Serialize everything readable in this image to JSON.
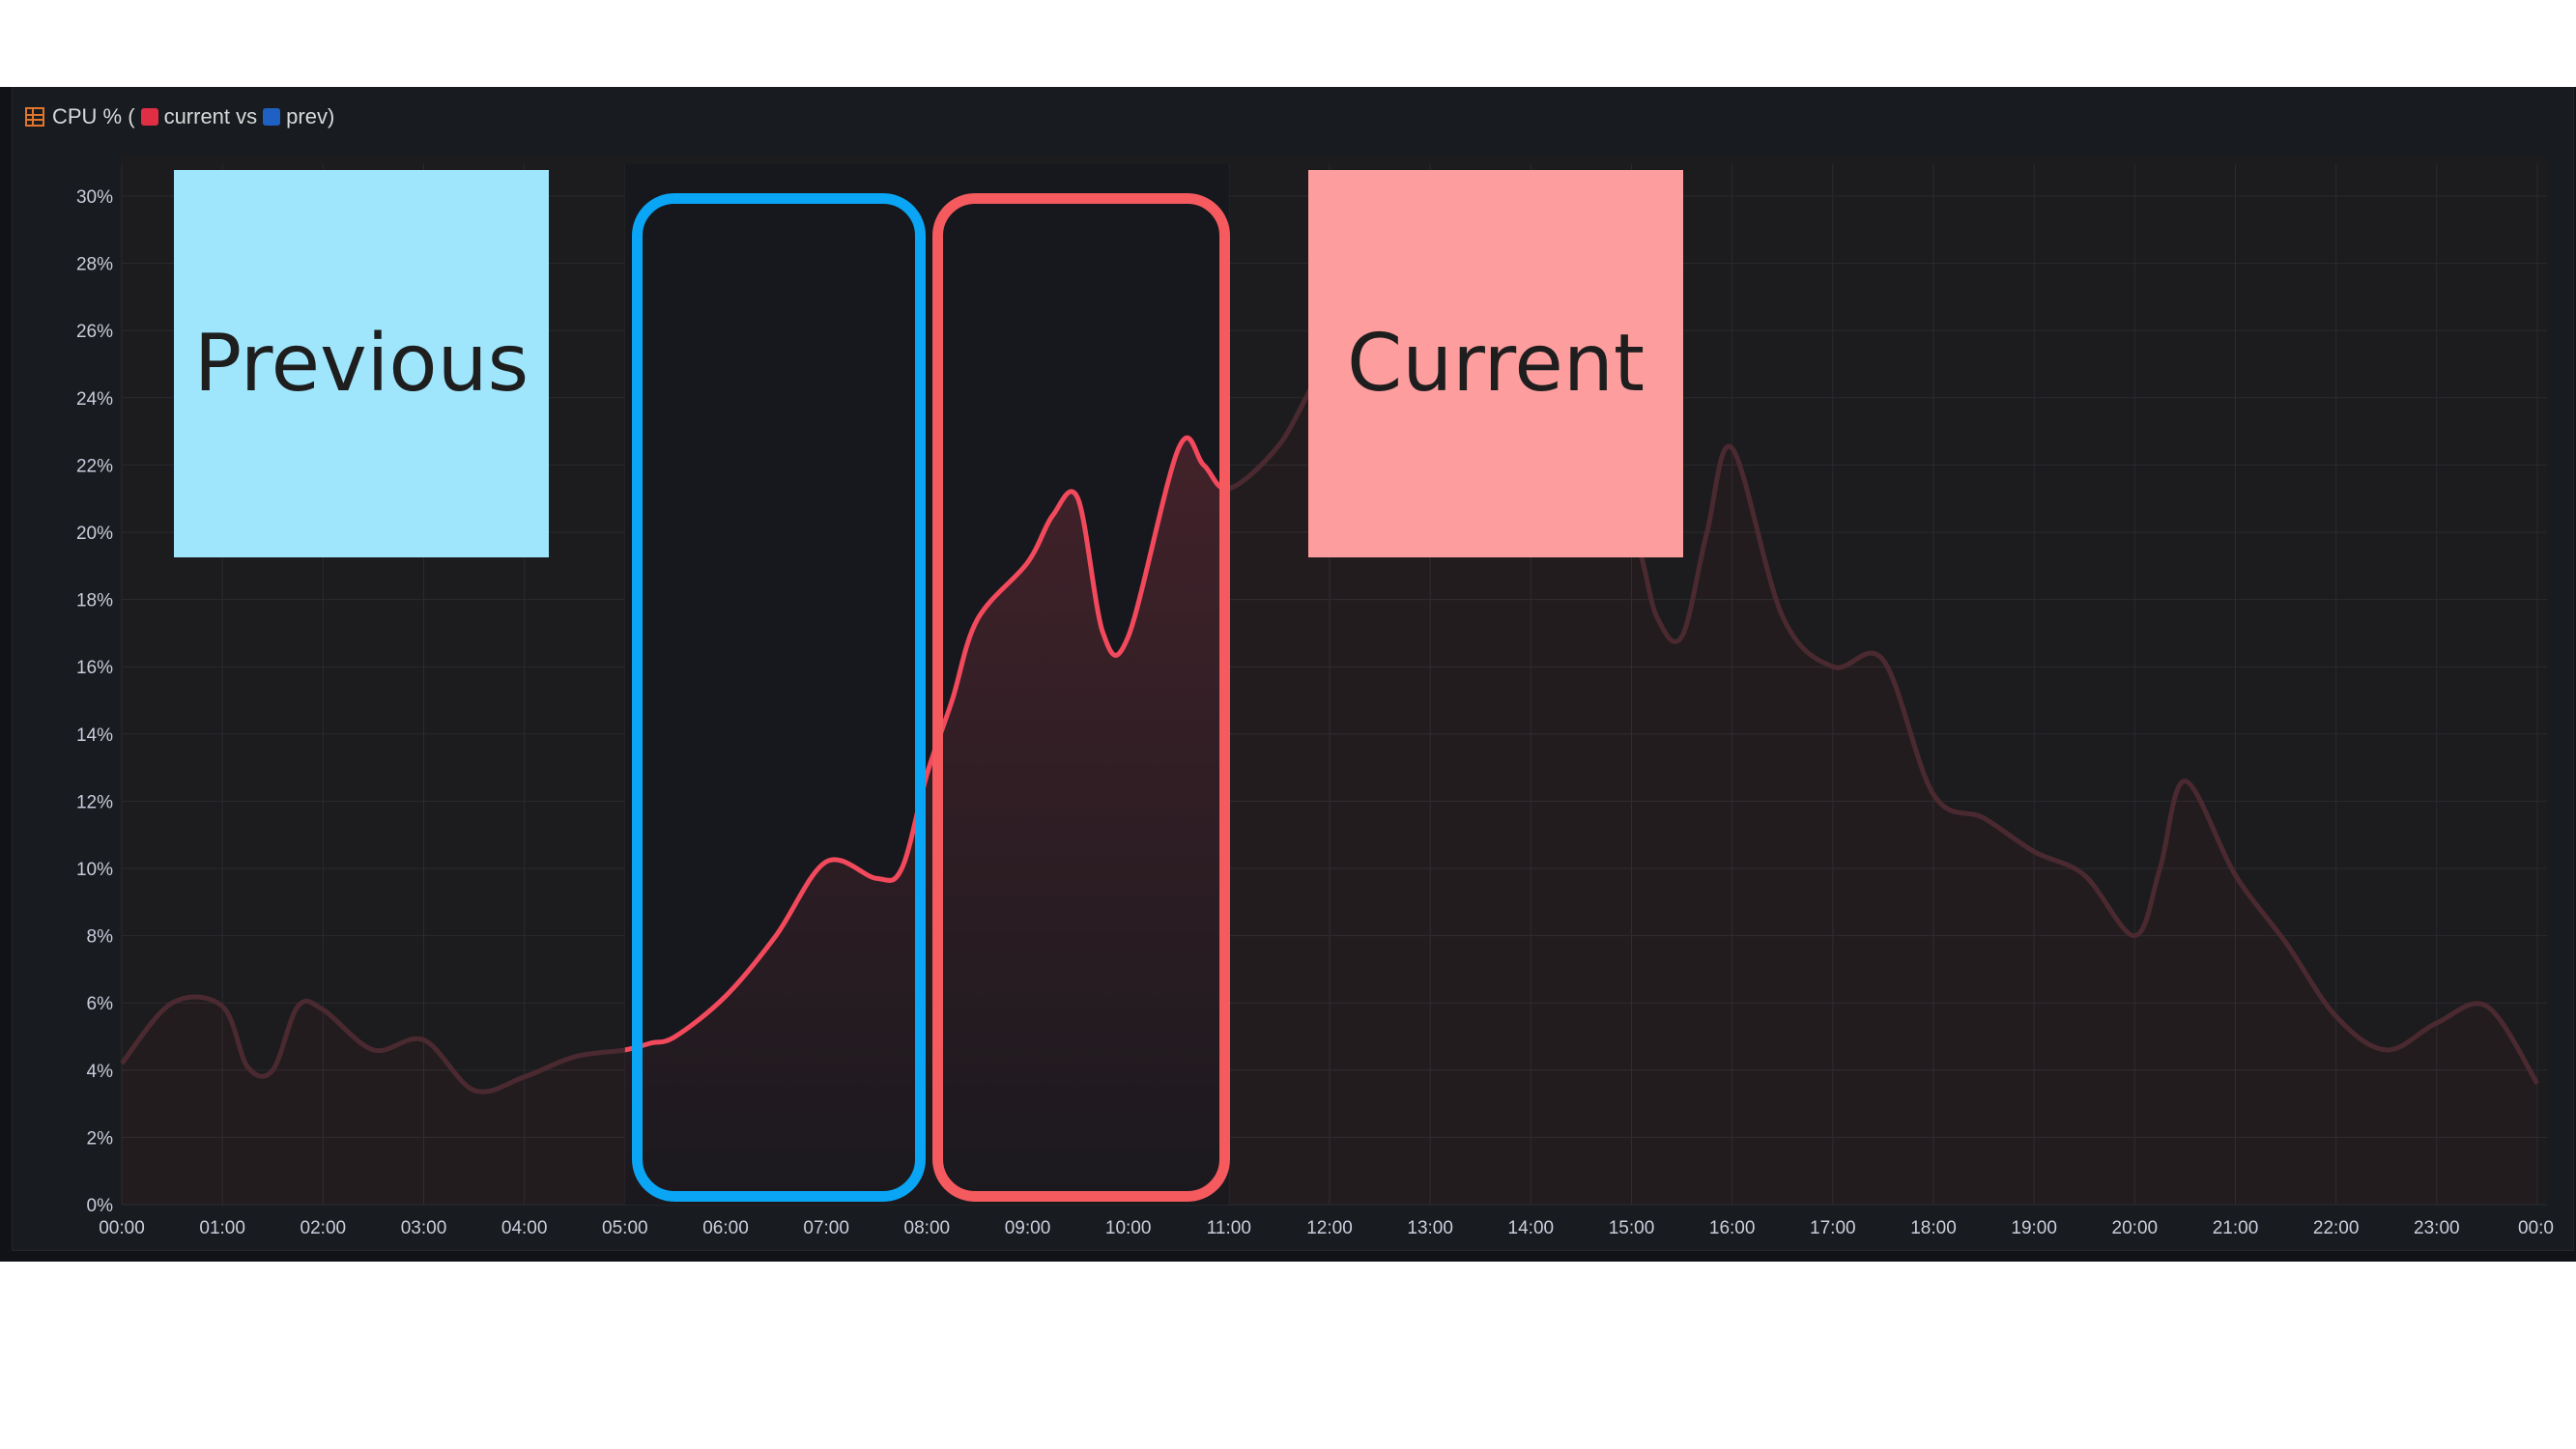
{
  "panel": {
    "title_prefix": "CPU % (",
    "current_label": "current vs",
    "prev_label": "prev)",
    "current_color": "#e02f44",
    "prev_color": "#1f60c4",
    "title_icon": "table-icon"
  },
  "annotations": {
    "previous_note": "Previous",
    "current_note": "Current",
    "previous_note_color": "#9fe5fc",
    "current_note_color": "#fe9d9d",
    "previous_box_color": "#0aa5f5",
    "current_box_color": "#f55a5f"
  },
  "chart_data": {
    "type": "area",
    "title": "CPU % (current vs prev)",
    "xlabel": "",
    "ylabel": "",
    "x_ticks": [
      "00:00",
      "01:00",
      "02:00",
      "03:00",
      "04:00",
      "05:00",
      "06:00",
      "07:00",
      "08:00",
      "09:00",
      "10:00",
      "11:00",
      "12:00",
      "13:00",
      "14:00",
      "15:00",
      "16:00",
      "17:00",
      "18:00",
      "19:00",
      "20:00",
      "21:00",
      "22:00",
      "23:00",
      "00:0"
    ],
    "y_ticks": [
      "0%",
      "2%",
      "4%",
      "6%",
      "8%",
      "10%",
      "12%",
      "14%",
      "16%",
      "18%",
      "20%",
      "22%",
      "24%",
      "26%",
      "28%",
      "30%"
    ],
    "ylim": [
      0,
      30
    ],
    "xlim_hours": [
      0,
      24
    ],
    "grid": true,
    "series": [
      {
        "name": "current",
        "color": "#f2495c",
        "highlight_hours": [
          5,
          11
        ],
        "x_hours": [
          0,
          0.5,
          1,
          1.25,
          1.5,
          1.75,
          2,
          2.5,
          3,
          3.5,
          4,
          4.5,
          5,
          5.25,
          5.5,
          6,
          6.5,
          7,
          7.5,
          7.75,
          8,
          8.25,
          8.5,
          9,
          9.25,
          9.5,
          9.75,
          10,
          10.5,
          10.75,
          11,
          11.5,
          12,
          12.5,
          13,
          13.5,
          14,
          14.5,
          15,
          15.25,
          15.5,
          15.75,
          16,
          16.5,
          17,
          17.5,
          18,
          18.5,
          19,
          19.5,
          20,
          20.25,
          20.5,
          21,
          21.5,
          22,
          22.5,
          23,
          23.5,
          24
        ],
        "values": [
          4.2,
          6.0,
          5.9,
          4.1,
          4.0,
          5.9,
          5.8,
          4.6,
          4.9,
          3.4,
          3.8,
          4.4,
          4.6,
          4.8,
          5.0,
          6.2,
          8.0,
          10.2,
          9.7,
          10.0,
          12.8,
          15.0,
          17.4,
          19.1,
          20.5,
          21.0,
          17.0,
          16.9,
          22.5,
          22.0,
          21.3,
          22.6,
          25.0,
          24.5,
          24.0,
          23.0,
          21.0,
          20.5,
          20.0,
          17.5,
          16.9,
          20.0,
          22.5,
          17.5,
          16.0,
          16.2,
          12.2,
          11.5,
          10.5,
          9.8,
          8.0,
          10.0,
          12.6,
          9.8,
          7.8,
          5.6,
          4.6,
          5.4,
          5.9,
          3.6
        ]
      }
    ]
  }
}
